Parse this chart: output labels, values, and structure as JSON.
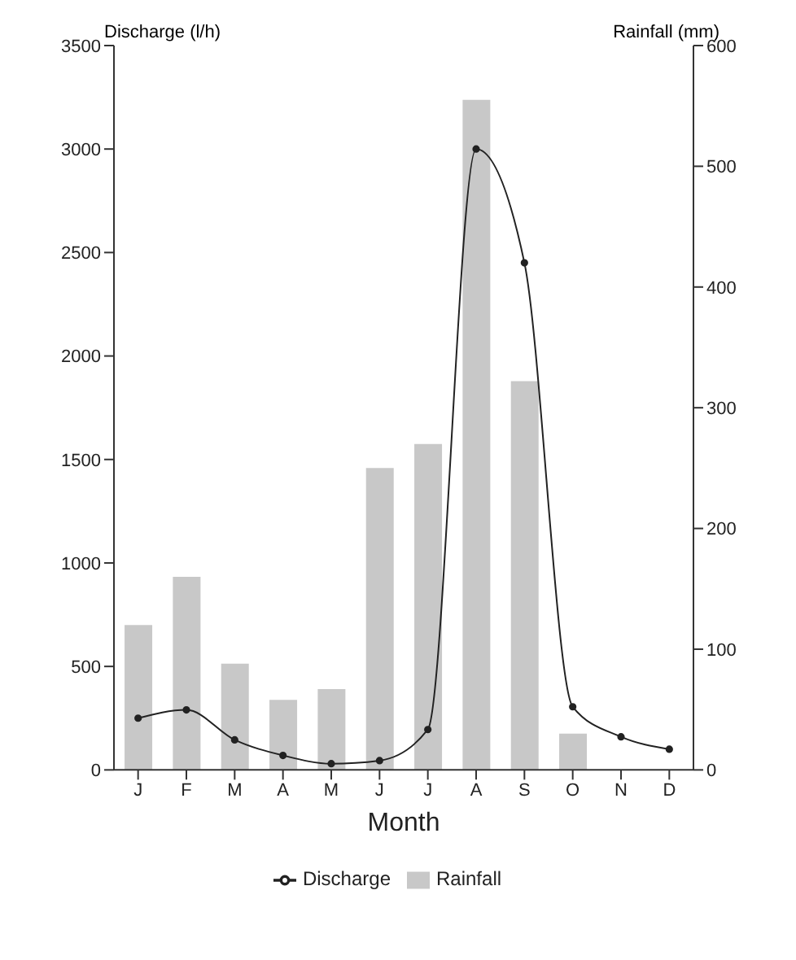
{
  "chart_data": {
    "type": "bar",
    "xlabel": "Month",
    "ylabel": "Discharge (l/h)",
    "y2label": "Rainfall (mm)",
    "categories": [
      "J",
      "F",
      "M",
      "A",
      "M",
      "J",
      "J",
      "A",
      "S",
      "O",
      "N",
      "D"
    ],
    "series": [
      {
        "name": "Rainfall",
        "axis": "y2",
        "color": "#c8c8c8",
        "values": [
          120,
          160,
          88,
          58,
          67,
          250,
          270,
          555,
          322,
          30,
          0,
          0
        ]
      },
      {
        "name": "Discharge",
        "type": "line",
        "axis": "y",
        "color": "#222222",
        "values": [
          250,
          290,
          145,
          70,
          30,
          45,
          195,
          3000,
          2450,
          305,
          160,
          100
        ]
      }
    ],
    "ylim": [
      0,
      3500
    ],
    "yticks": [
      0,
      500,
      1000,
      1500,
      2000,
      2500,
      3000,
      3500
    ],
    "y2lim": [
      0,
      600
    ],
    "y2ticks": [
      0,
      100,
      200,
      300,
      400,
      500,
      600
    ],
    "grid": false,
    "legend": "bottom",
    "marker": "circle",
    "line_style": "solid"
  }
}
